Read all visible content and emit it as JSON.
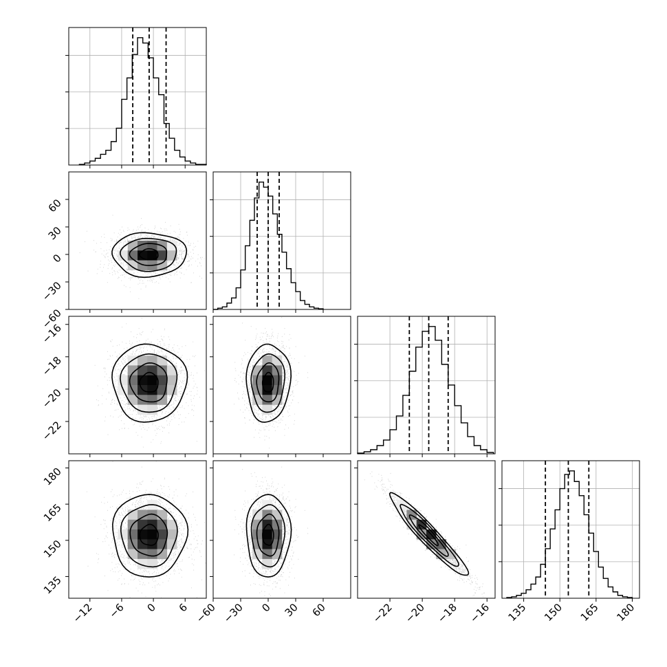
{
  "figure": {
    "type": "corner-plot",
    "dimensions": 4
  },
  "chart_data": [
    {
      "type": "histogram",
      "panel": "1D marginal (parameter 1)",
      "xlim": [
        -16,
        10
      ],
      "bin_edges": [
        -14,
        -13,
        -12,
        -11,
        -10,
        -9,
        -8,
        -7,
        -6,
        -5,
        -4,
        -3,
        -2,
        -1,
        0,
        1,
        2,
        3,
        4,
        5,
        6,
        7,
        8,
        9,
        10
      ],
      "counts": [
        1,
        3,
        6,
        10,
        16,
        22,
        35,
        55,
        98,
        130,
        165,
        190,
        182,
        160,
        130,
        105,
        62,
        40,
        22,
        12,
        6,
        3,
        1,
        1
      ],
      "quantiles": [
        -3.9,
        -0.8,
        2.4
      ],
      "yticks_count": 3,
      "grid": true
    },
    {
      "type": "histogram",
      "panel": "1D marginal (parameter 2)",
      "xlim": [
        -60,
        90
      ],
      "bin_edges": [
        -60,
        -55,
        -50,
        -45,
        -40,
        -35,
        -30,
        -25,
        -20,
        -15,
        -10,
        -5,
        0,
        5,
        10,
        15,
        20,
        25,
        30,
        35,
        40,
        45,
        50,
        55,
        60
      ],
      "counts": [
        0,
        2,
        4,
        10,
        18,
        34,
        62,
        100,
        140,
        175,
        200,
        192,
        178,
        150,
        118,
        90,
        64,
        42,
        28,
        14,
        8,
        4,
        2,
        1
      ],
      "quantiles": [
        -12,
        0,
        12
      ],
      "yticks_count": 3,
      "grid": true
    },
    {
      "type": "histogram",
      "panel": "1D marginal (parameter 3)",
      "xlim": [
        -24,
        -15.5
      ],
      "bin_edges": [
        -24,
        -23.6,
        -23.2,
        -22.8,
        -22.4,
        -22.0,
        -21.6,
        -21.2,
        -20.8,
        -20.4,
        -20.0,
        -19.6,
        -19.2,
        -18.8,
        -18.4,
        -18.0,
        -17.6,
        -17.2,
        -16.8,
        -16.4,
        -16.0,
        -15.6
      ],
      "counts": [
        1,
        3,
        6,
        12,
        20,
        35,
        55,
        85,
        120,
        155,
        178,
        185,
        165,
        130,
        100,
        70,
        45,
        25,
        12,
        6,
        2
      ],
      "quantiles": [
        -20.8,
        -19.6,
        -18.4
      ],
      "yticks_count": 3,
      "grid": true
    },
    {
      "type": "histogram",
      "panel": "1D marginal (parameter 4)",
      "xlim": [
        126,
        183
      ],
      "bin_edges": [
        128,
        130,
        132,
        134,
        136,
        138,
        140,
        142,
        144,
        146,
        148,
        150,
        152,
        154,
        156,
        158,
        160,
        162,
        164,
        166,
        168,
        170,
        172,
        174,
        176,
        178,
        180
      ],
      "counts": [
        1,
        2,
        4,
        7,
        12,
        20,
        30,
        48,
        70,
        98,
        125,
        155,
        175,
        180,
        165,
        145,
        118,
        92,
        66,
        44,
        28,
        16,
        9,
        4,
        2,
        1
      ],
      "quantiles": [
        144,
        153.5,
        162
      ],
      "yticks_count": 3,
      "grid": true
    },
    {
      "type": "heatmap",
      "panel": "2D (parameter 1 vs parameter 2)",
      "xlim": [
        -16,
        10
      ],
      "ylim": [
        -60,
        90
      ],
      "center": [
        -0.8,
        0
      ],
      "sd": [
        3.5,
        12
      ],
      "rho": 0,
      "contour_levels_sigma": [
        0.5,
        1,
        1.5,
        2
      ]
    },
    {
      "type": "heatmap",
      "panel": "2D (parameter 1 vs parameter 3)",
      "xlim": [
        -16,
        10
      ],
      "ylim": [
        -24,
        -15.5
      ],
      "center": [
        -0.8,
        -19.6
      ],
      "sd": [
        3.5,
        1.2
      ],
      "rho": 0,
      "contour_levels_sigma": [
        0.5,
        1,
        1.5,
        2
      ]
    },
    {
      "type": "heatmap",
      "panel": "2D (parameter 2 vs parameter 3)",
      "xlim": [
        -60,
        90
      ],
      "ylim": [
        -24,
        -15.5
      ],
      "center": [
        0,
        -19.6
      ],
      "sd": [
        12,
        1.2
      ],
      "rho": 0.05,
      "contour_levels_sigma": [
        0.5,
        1,
        1.5,
        2
      ]
    },
    {
      "type": "heatmap",
      "panel": "2D (parameter 1 vs parameter 4)",
      "xlim": [
        -16,
        10
      ],
      "ylim": [
        126,
        186
      ],
      "center": [
        -0.8,
        153.5
      ],
      "sd": [
        3.5,
        9
      ],
      "rho": 0,
      "contour_levels_sigma": [
        0.5,
        1,
        1.5,
        2
      ]
    },
    {
      "type": "heatmap",
      "panel": "2D (parameter 2 vs parameter 4)",
      "xlim": [
        -60,
        90
      ],
      "ylim": [
        126,
        186
      ],
      "center": [
        0,
        153.5
      ],
      "sd": [
        12,
        9
      ],
      "rho": 0,
      "contour_levels_sigma": [
        0.5,
        1,
        1.5,
        2
      ]
    },
    {
      "type": "heatmap",
      "panel": "2D (parameter 3 vs parameter 4)",
      "xlim": [
        -24,
        -15.5
      ],
      "ylim": [
        126,
        186
      ],
      "center": [
        -19.6,
        153.5
      ],
      "sd": [
        1.2,
        9
      ],
      "rho": -0.95,
      "contour_levels_sigma": [
        0.5,
        1,
        1.5,
        2
      ]
    }
  ],
  "ticks": {
    "p1": [
      "-12",
      "-6",
      "0",
      "6"
    ],
    "p2": [
      "-60",
      "-30",
      "0",
      "30",
      "60"
    ],
    "p3": [
      "-22",
      "-20",
      "-18",
      "-16"
    ],
    "p4": [
      "135",
      "150",
      "165",
      "180"
    ]
  },
  "tick_values": {
    "p1": [
      -12,
      -6,
      0,
      6
    ],
    "p2": [
      -60,
      -30,
      0,
      30,
      60
    ],
    "p3": [
      -22,
      -20,
      -18,
      -16
    ],
    "p4": [
      135,
      150,
      165,
      180
    ]
  }
}
